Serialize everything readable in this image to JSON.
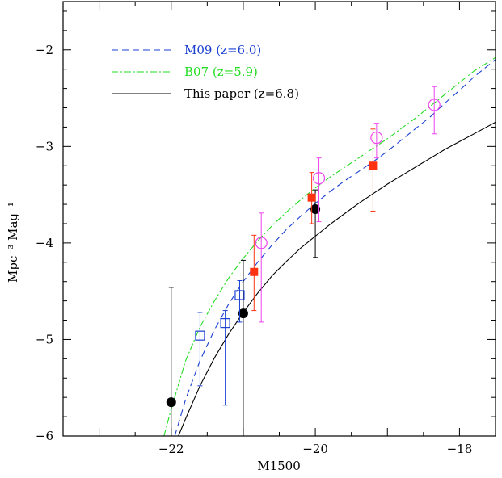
{
  "chart_data": {
    "type": "scatter",
    "xlabel": "M1500",
    "ylabel": "Mpc⁻³ Mag⁻¹",
    "xlim": [
      -23.5,
      -17.5
    ],
    "ylim": [
      -6,
      -1.5
    ],
    "x_ticks": [
      -22,
      -20,
      -18
    ],
    "x_tick_labels": [
      "−22",
      "−20",
      "−18"
    ],
    "y_ticks": [
      -6,
      -5,
      -4,
      -3,
      -2
    ],
    "y_tick_labels": [
      "−6",
      "−5",
      "−4",
      "−3",
      "−2"
    ],
    "legend_position": "top-left",
    "series": [
      {
        "name": "M09 (z=6.0)",
        "kind": "curve",
        "style": "dashed",
        "color": "#1a3fd1",
        "x": [
          -21.95,
          -21.8,
          -21.6,
          -21.4,
          -21.2,
          -21.0,
          -20.8,
          -20.6,
          -20.4,
          -20.2,
          -20.0,
          -19.8,
          -19.6,
          -19.4,
          -19.2,
          -19.0,
          -18.8,
          -18.6,
          -18.4,
          -18.2,
          -18.0,
          -17.8,
          -17.5
        ],
        "y": [
          -6.0,
          -5.62,
          -5.22,
          -4.9,
          -4.63,
          -4.4,
          -4.2,
          -4.02,
          -3.86,
          -3.72,
          -3.59,
          -3.47,
          -3.36,
          -3.26,
          -3.16,
          -3.05,
          -2.93,
          -2.81,
          -2.69,
          -2.55,
          -2.42,
          -2.28,
          -2.1
        ]
      },
      {
        "name": "B07 (z=5.9)",
        "kind": "curve",
        "style": "dash-dot",
        "color": "#22dd22",
        "x": [
          -22.1,
          -22.0,
          -21.8,
          -21.6,
          -21.4,
          -21.2,
          -21.0,
          -20.8,
          -20.6,
          -20.4,
          -20.2,
          -20.0,
          -19.8,
          -19.6,
          -19.4,
          -19.2,
          -19.0,
          -18.8,
          -18.6,
          -18.4,
          -18.2,
          -18.0,
          -17.8,
          -17.5
        ],
        "y": [
          -6.0,
          -5.72,
          -5.22,
          -4.87,
          -4.6,
          -4.36,
          -4.16,
          -3.98,
          -3.82,
          -3.68,
          -3.55,
          -3.43,
          -3.32,
          -3.22,
          -3.12,
          -3.02,
          -2.92,
          -2.81,
          -2.7,
          -2.58,
          -2.46,
          -2.34,
          -2.22,
          -2.08
        ]
      },
      {
        "name": "This paper (z=6.8)",
        "kind": "curve",
        "style": "solid",
        "color": "#000000",
        "x": [
          -21.9,
          -21.8,
          -21.6,
          -21.4,
          -21.2,
          -21.0,
          -20.8,
          -20.6,
          -20.4,
          -20.2,
          -20.0,
          -19.8,
          -19.6,
          -19.4,
          -19.2,
          -19.0,
          -18.8,
          -18.6,
          -18.4,
          -18.2,
          -18.0,
          -17.8,
          -17.5
        ],
        "y": [
          -6.0,
          -5.82,
          -5.48,
          -5.19,
          -4.94,
          -4.72,
          -4.52,
          -4.34,
          -4.19,
          -4.05,
          -3.93,
          -3.81,
          -3.7,
          -3.59,
          -3.49,
          -3.39,
          -3.3,
          -3.21,
          -3.12,
          -3.03,
          -2.95,
          -2.87,
          -2.75
        ]
      },
      {
        "name": "",
        "kind": "points",
        "marker": "filled-circle",
        "color": "#000000",
        "x": [
          -22.0,
          -21.0,
          -20.0
        ],
        "y": [
          -5.65,
          -4.73,
          -3.65
        ],
        "yerr_lo": [
          -6.0,
          -6.0,
          -4.15
        ],
        "yerr_hi": [
          -4.46,
          -4.18,
          -3.45
        ]
      },
      {
        "name": "",
        "kind": "points",
        "marker": "open-square",
        "color": "#1a3fd1",
        "x": [
          -21.6,
          -21.25,
          -21.05
        ],
        "y": [
          -4.96,
          -4.83,
          -4.54
        ],
        "yerr_lo": [
          -5.48,
          -5.68,
          -4.82
        ],
        "yerr_hi": [
          -4.72,
          -4.7,
          -4.39
        ]
      },
      {
        "name": "",
        "kind": "points",
        "marker": "filled-square",
        "color": "#ff3311",
        "x": [
          -20.85,
          -20.05,
          -19.2
        ],
        "y": [
          -4.3,
          -3.53,
          -3.2
        ],
        "yerr_lo": [
          -4.7,
          -3.8,
          -3.67
        ],
        "yerr_hi": [
          -3.92,
          -3.27,
          -2.82
        ]
      },
      {
        "name": "",
        "kind": "points",
        "marker": "open-circle",
        "color": "#ee44ee",
        "x": [
          -20.75,
          -19.95,
          -19.15,
          -18.35
        ],
        "y": [
          -4.0,
          -3.33,
          -2.91,
          -2.57
        ],
        "yerr_lo": [
          -4.82,
          -3.78,
          -3.12,
          -2.87
        ],
        "yerr_hi": [
          -3.69,
          -3.12,
          -2.76,
          -2.38
        ]
      }
    ]
  }
}
